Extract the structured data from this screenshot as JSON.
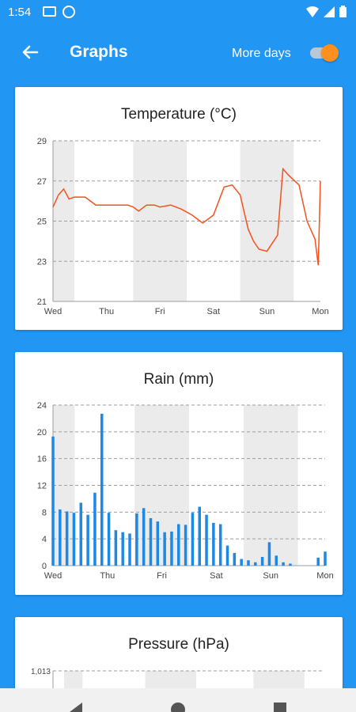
{
  "status_bar": {
    "time": "1:54"
  },
  "app_bar": {
    "title": "Graphs",
    "more_days_label": "More days",
    "more_days_on": true,
    "accent": "#FF8F1F"
  },
  "colors": {
    "background": "#2196F3",
    "temperature_line": "#F4511E",
    "rain_bar": "#1E88E5",
    "shade": "#EBEBEB"
  },
  "chart_data": [
    {
      "type": "line",
      "title": "Temperature (°C)",
      "yticks": [
        "21",
        "23",
        "25",
        "27",
        "29"
      ],
      "ylim": [
        21,
        29
      ],
      "xticks": [
        "Wed",
        "Thu",
        "Fri",
        "Sat",
        "Sun",
        "Mon"
      ],
      "xlim": [
        0,
        5
      ],
      "grid": true,
      "shaded_ranges": [
        [
          0,
          0.4
        ],
        [
          1.5,
          2.5
        ],
        [
          3.5,
          4.5
        ]
      ],
      "x": [
        0,
        0.1,
        0.2,
        0.3,
        0.4,
        0.6,
        0.8,
        1.0,
        1.2,
        1.4,
        1.5,
        1.6,
        1.75,
        1.9,
        2.0,
        2.2,
        2.4,
        2.6,
        2.8,
        3.0,
        3.2,
        3.35,
        3.5,
        3.65,
        3.75,
        3.85,
        4.0,
        4.2,
        4.3,
        4.4,
        4.6,
        4.75,
        4.9,
        4.96,
        5.0
      ],
      "values": [
        25.7,
        26.3,
        26.6,
        26.1,
        26.2,
        26.2,
        25.8,
        25.8,
        25.8,
        25.8,
        25.7,
        25.5,
        25.8,
        25.8,
        25.7,
        25.8,
        25.6,
        25.3,
        24.9,
        25.3,
        26.7,
        26.8,
        26.3,
        24.6,
        24.0,
        23.6,
        23.5,
        24.3,
        27.6,
        27.3,
        26.8,
        25.0,
        24.1,
        22.8,
        27.0
      ]
    },
    {
      "type": "bar",
      "title": "Rain (mm)",
      "yticks": [
        "0",
        "4",
        "8",
        "12",
        "16",
        "20",
        "24"
      ],
      "ylim": [
        0,
        24
      ],
      "xticks": [
        "Wed",
        "Thu",
        "Fri",
        "Sat",
        "Sun",
        "Mon"
      ],
      "xlim": [
        0,
        5
      ],
      "grid": true,
      "shaded_ranges": [
        [
          0,
          0.4
        ],
        [
          1.5,
          2.5
        ],
        [
          3.5,
          4.5
        ]
      ],
      "values": [
        19.3,
        8.4,
        8.1,
        7.9,
        9.4,
        7.6,
        10.9,
        22.7,
        7.9,
        5.3,
        5.0,
        4.8,
        7.8,
        8.6,
        7.1,
        6.6,
        5.0,
        5.1,
        6.2,
        6.1,
        7.9,
        8.8,
        7.6,
        6.4,
        6.2,
        3.0,
        1.9,
        1.0,
        0.8,
        0.5,
        1.3,
        3.5,
        1.5,
        0.5,
        0.3,
        0.0,
        0.0,
        0.0,
        1.2,
        2.1
      ]
    },
    {
      "type": "line",
      "title": "Pressure (hPa)",
      "yticks": [
        "1,013"
      ],
      "shaded_ranges": [
        [
          0,
          0.4
        ],
        [
          1.5,
          2.5
        ],
        [
          3.5,
          4.5
        ]
      ]
    }
  ]
}
